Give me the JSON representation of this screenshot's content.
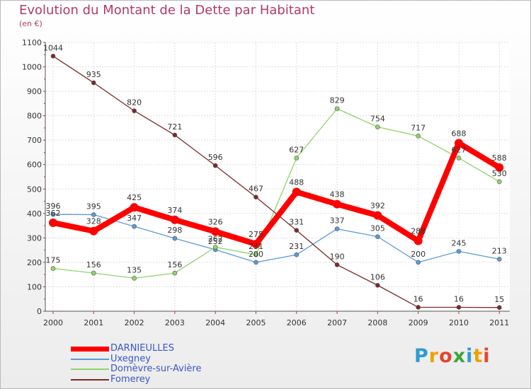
{
  "title": "Evolution du Montant de la Dette par Habitant",
  "unit": "(en €)",
  "logo": {
    "text": "Proxiti",
    "letter_colors": [
      "#2e9bd6",
      "#f0a000",
      "#e8432b",
      "#3aa635",
      "#2e9bd6",
      "#f0a000",
      "#e8432b"
    ]
  },
  "chart_data": {
    "type": "line",
    "title": "Evolution du Montant de la Dette par Habitant",
    "subtitle": "(en €)",
    "xlabel": "",
    "ylabel": "",
    "x": [
      "2000",
      "2001",
      "2002",
      "2003",
      "2004",
      "2005",
      "2006",
      "2007",
      "2008",
      "2009",
      "2010",
      "2011"
    ],
    "ylim": [
      0,
      1100
    ],
    "yticks": [
      0,
      100,
      200,
      300,
      400,
      500,
      600,
      700,
      800,
      900,
      1000,
      1100
    ],
    "grid": true,
    "legend_position": "bottom-left",
    "series": [
      {
        "name": "DARNIEULLES",
        "color": "#ff0000",
        "emphasis": true,
        "values": [
          362,
          328,
          425,
          374,
          326,
          275,
          488,
          438,
          392,
          288,
          688,
          588
        ],
        "labels": [
          "362",
          "328",
          "425",
          "374",
          "326",
          "275",
          "488",
          "438",
          "392",
          "288",
          "688",
          "588"
        ]
      },
      {
        "name": "Uxegney",
        "color": "#5b9bd5",
        "emphasis": false,
        "values": [
          396,
          395,
          347,
          298,
          252,
          200,
          231,
          337,
          305,
          200,
          245,
          213
        ],
        "labels": [
          "396",
          "395",
          "347",
          "298",
          "252",
          "200",
          "231",
          "337",
          "305",
          "200",
          "245",
          "213"
        ]
      },
      {
        "name": "Domèvre-sur-Avière",
        "color": "#8fd46a",
        "emphasis": false,
        "values": [
          175,
          156,
          135,
          156,
          262,
          231,
          627,
          829,
          754,
          717,
          627,
          530
        ],
        "labels": [
          "175",
          "156",
          "135",
          "156",
          "262",
          "231",
          "627",
          "829",
          "754",
          "717",
          "627",
          "530"
        ]
      },
      {
        "name": "Fomerey",
        "color": "#7b2a2a",
        "emphasis": false,
        "values": [
          1044,
          935,
          820,
          721,
          596,
          467,
          331,
          190,
          106,
          16,
          16,
          15
        ],
        "labels": [
          "1044",
          "935",
          "820",
          "721",
          "596",
          "467",
          "331",
          "190",
          "106",
          "16",
          "16",
          "15"
        ]
      }
    ]
  }
}
